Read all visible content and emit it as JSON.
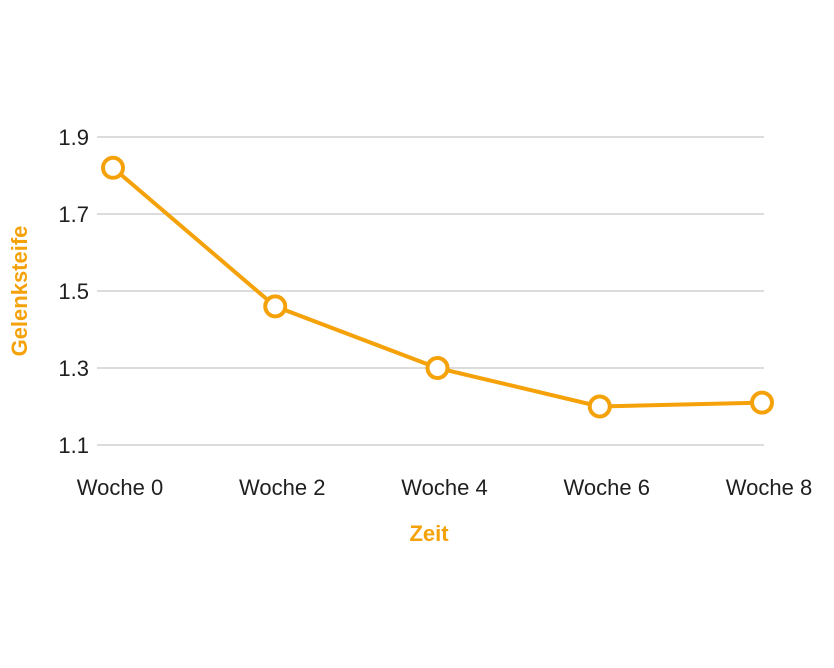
{
  "colors": {
    "accent": "#f5a20a",
    "grid": "#c8c8c8",
    "text": "#1f1f1f",
    "background": "#ffffff"
  },
  "chart_data": {
    "type": "line",
    "title": "",
    "xlabel": "Zeit",
    "ylabel": "Gelenksteife",
    "categories": [
      "Woche 0",
      "Woche 2",
      "Woche 4",
      "Woche 6",
      "Woche 8"
    ],
    "series": [
      {
        "values": [
          1.82,
          1.46,
          1.3,
          1.2,
          1.21
        ]
      }
    ],
    "y_ticks": [
      "1.1",
      "1.3",
      "1.5",
      "1.7",
      "1.9"
    ],
    "ylim": [
      1.1,
      1.9
    ],
    "grid": true,
    "legend": "none",
    "markers": "hollow-circle"
  }
}
